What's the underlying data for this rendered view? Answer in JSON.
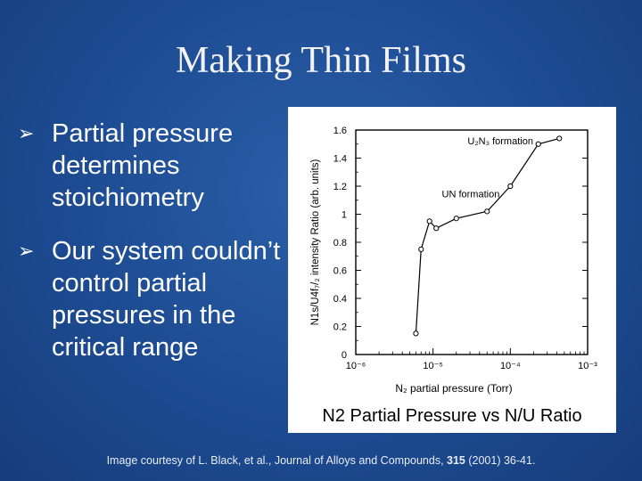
{
  "slide": {
    "title": "Making Thin Films",
    "bullets": [
      {
        "icon": "arrow-bullet-icon",
        "text": "Partial pressure determines stoichiometry"
      },
      {
        "icon": "arrow-bullet-icon",
        "text": "Our system couldn’t control partial pressures in the critical range"
      }
    ],
    "caption": "N2 Partial Pressure vs N/U Ratio",
    "credit_prefix": "Image courtesy of L. Black, et al., Journal of Alloys and Compounds, ",
    "credit_volume": "315",
    "credit_suffix": " (2001) 36-41."
  },
  "colors": {
    "background": "#1d4b92",
    "text": "#ffffff",
    "chart_ink": "#000000"
  },
  "chart_data": {
    "type": "line",
    "xlabel": "N₂ partial pressure (Torr)",
    "ylabel": "N1s/U4f₇/₂ intensity Ratio (arb. units)",
    "xscale": "log",
    "xlim": [
      1e-06,
      0.001
    ],
    "ylim": [
      0,
      1.6
    ],
    "x_ticks": [
      {
        "value": 1e-06,
        "label": "10⁻⁶"
      },
      {
        "value": 1e-05,
        "label": "10⁻⁵"
      },
      {
        "value": 0.0001,
        "label": "10⁻⁴"
      },
      {
        "value": 0.001,
        "label": "10⁻³"
      }
    ],
    "y_ticks": [
      {
        "value": 0,
        "label": "0"
      },
      {
        "value": 0.2,
        "label": "0.2"
      },
      {
        "value": 0.4,
        "label": "0.4"
      },
      {
        "value": 0.6,
        "label": "0.6"
      },
      {
        "value": 0.8,
        "label": "0.8"
      },
      {
        "value": 1.0,
        "label": "1"
      },
      {
        "value": 1.2,
        "label": "1.2"
      },
      {
        "value": 1.4,
        "label": "1.4"
      },
      {
        "value": 1.6,
        "label": "1.6"
      }
    ],
    "series": [
      {
        "x": [
          6e-06,
          7e-06,
          9e-06,
          1.1e-05,
          2e-05,
          5e-05,
          0.0001,
          0.00023,
          0.00043
        ],
        "y": [
          0.15,
          0.75,
          0.95,
          0.9,
          0.97,
          1.02,
          1.2,
          1.5,
          1.54
        ]
      }
    ],
    "annotations": [
      {
        "text": "U₂N₃ formation",
        "x": 2.8e-05,
        "y": 1.5
      },
      {
        "text": "UN formation",
        "x": 1.3e-05,
        "y": 1.12
      }
    ],
    "grid": false,
    "legend": "none"
  }
}
